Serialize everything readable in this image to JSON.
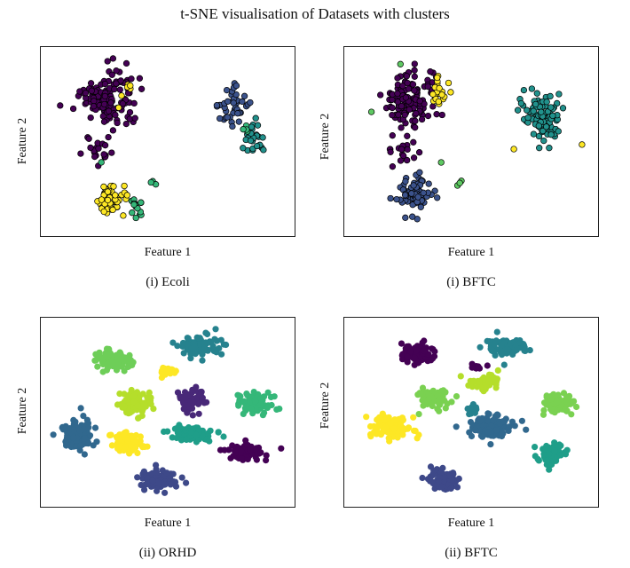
{
  "figure": {
    "title": "t-SNE visualisation of Datasets with clusters"
  },
  "chart_data": [
    {
      "type": "scatter",
      "caption": "(i) Ecoli",
      "xlabel": "Feature 1",
      "ylabel": "Feature 2",
      "axes_ticks": false,
      "grid": false,
      "series": [
        {
          "color": "#440154",
          "clusters": [
            [
              0.25,
              0.27,
              0.1,
              0.14,
              130
            ],
            [
              0.21,
              0.55,
              0.06,
              0.07,
              20
            ]
          ]
        },
        {
          "color": "#3b528b",
          "clusters": [
            [
              0.77,
              0.3,
              0.06,
              0.09,
              40
            ]
          ]
        },
        {
          "color": "#21918c",
          "clusters": [
            [
              0.86,
              0.47,
              0.05,
              0.08,
              30
            ]
          ]
        },
        {
          "color": "#35b779",
          "clusters": [
            [
              0.37,
              0.87,
              0.03,
              0.05,
              15
            ],
            [
              0.45,
              0.73,
              0.02,
              0.02,
              3
            ],
            [
              0.81,
              0.43,
              0.02,
              0.03,
              4
            ],
            [
              0.23,
              0.6,
              0.01,
              0.01,
              1
            ]
          ]
        },
        {
          "color": "#fde725",
          "clusters": [
            [
              0.27,
              0.82,
              0.05,
              0.08,
              60
            ],
            [
              0.33,
              0.22,
              0.03,
              0.06,
              6
            ]
          ]
        }
      ]
    },
    {
      "type": "scatter",
      "caption": "(i) BFTC",
      "xlabel": "Feature 1",
      "ylabel": "Feature 2",
      "axes_ticks": false,
      "grid": false,
      "series": [
        {
          "color": "#440154",
          "clusters": [
            [
              0.25,
              0.27,
              0.09,
              0.14,
              130
            ],
            [
              0.22,
              0.55,
              0.06,
              0.07,
              20
            ]
          ]
        },
        {
          "color": "#3b528b",
          "clusters": [
            [
              0.27,
              0.8,
              0.06,
              0.1,
              70
            ]
          ]
        },
        {
          "color": "#21918c",
          "clusters": [
            [
              0.8,
              0.36,
              0.09,
              0.13,
              90
            ]
          ]
        },
        {
          "color": "#5ec962",
          "clusters": [
            [
              0.45,
              0.73,
              0.02,
              0.02,
              3
            ],
            [
              0.38,
              0.62,
              0.01,
              0.01,
              1
            ],
            [
              0.09,
              0.33,
              0.01,
              0.01,
              1
            ],
            [
              0.2,
              0.06,
              0.01,
              0.01,
              1
            ]
          ]
        },
        {
          "color": "#fde725",
          "clusters": [
            [
              0.37,
              0.25,
              0.03,
              0.08,
              20
            ],
            [
              0.68,
              0.55,
              0.01,
              0.01,
              1
            ],
            [
              0.96,
              0.52,
              0.01,
              0.01,
              1
            ]
          ]
        }
      ]
    },
    {
      "type": "scatter",
      "caption": "(ii) ORHD",
      "xlabel": "Feature 1",
      "ylabel": "Feature 2",
      "axes_ticks": false,
      "grid": false,
      "series": [
        {
          "color": "#440154",
          "clusters": [
            [
              0.82,
              0.72,
              0.06,
              0.05,
              90
            ]
          ]
        },
        {
          "color": "#482878",
          "clusters": [
            [
              0.6,
              0.43,
              0.05,
              0.06,
              60
            ]
          ]
        },
        {
          "color": "#3e4989",
          "clusters": [
            [
              0.46,
              0.88,
              0.07,
              0.05,
              90
            ]
          ]
        },
        {
          "color": "#31688e",
          "clusters": [
            [
              0.13,
              0.63,
              0.06,
              0.07,
              90
            ]
          ]
        },
        {
          "color": "#26828e",
          "clusters": [
            [
              0.63,
              0.13,
              0.07,
              0.05,
              80
            ]
          ]
        },
        {
          "color": "#1f9e89",
          "clusters": [
            [
              0.61,
              0.62,
              0.08,
              0.04,
              90
            ]
          ]
        },
        {
          "color": "#35b779",
          "clusters": [
            [
              0.86,
              0.45,
              0.06,
              0.05,
              90
            ]
          ]
        },
        {
          "color": "#6ece58",
          "clusters": [
            [
              0.28,
              0.2,
              0.07,
              0.05,
              90
            ]
          ]
        },
        {
          "color": "#b5de2b",
          "clusters": [
            [
              0.36,
              0.45,
              0.06,
              0.06,
              90
            ]
          ]
        },
        {
          "color": "#fde725",
          "clusters": [
            [
              0.33,
              0.67,
              0.06,
              0.05,
              90
            ],
            [
              0.49,
              0.27,
              0.03,
              0.02,
              25
            ]
          ]
        }
      ]
    },
    {
      "type": "scatter",
      "caption": "(ii) BFTC",
      "xlabel": "Feature 1",
      "ylabel": "Feature 2",
      "axes_ticks": false,
      "grid": false,
      "series": [
        {
          "color": "#440154",
          "clusters": [
            [
              0.27,
              0.17,
              0.06,
              0.05,
              90
            ],
            [
              0.53,
              0.25,
              0.02,
              0.02,
              8
            ]
          ]
        },
        {
          "color": "#3e4989",
          "clusters": [
            [
              0.38,
              0.88,
              0.06,
              0.05,
              90
            ]
          ]
        },
        {
          "color": "#31688e",
          "clusters": [
            [
              0.58,
              0.58,
              0.09,
              0.06,
              110
            ]
          ]
        },
        {
          "color": "#26828e",
          "clusters": [
            [
              0.65,
              0.13,
              0.07,
              0.05,
              80
            ],
            [
              0.5,
              0.47,
              0.03,
              0.03,
              12
            ]
          ]
        },
        {
          "color": "#1f9e89",
          "clusters": [
            [
              0.83,
              0.73,
              0.05,
              0.05,
              70
            ]
          ]
        },
        {
          "color": "#7ad151",
          "clusters": [
            [
              0.86,
              0.45,
              0.06,
              0.05,
              90
            ],
            [
              0.35,
              0.42,
              0.07,
              0.06,
              70
            ]
          ]
        },
        {
          "color": "#b5de2b",
          "clusters": [
            [
              0.56,
              0.33,
              0.06,
              0.04,
              60
            ]
          ]
        },
        {
          "color": "#fde725",
          "clusters": [
            [
              0.17,
              0.58,
              0.07,
              0.06,
              110
            ]
          ]
        }
      ]
    }
  ]
}
